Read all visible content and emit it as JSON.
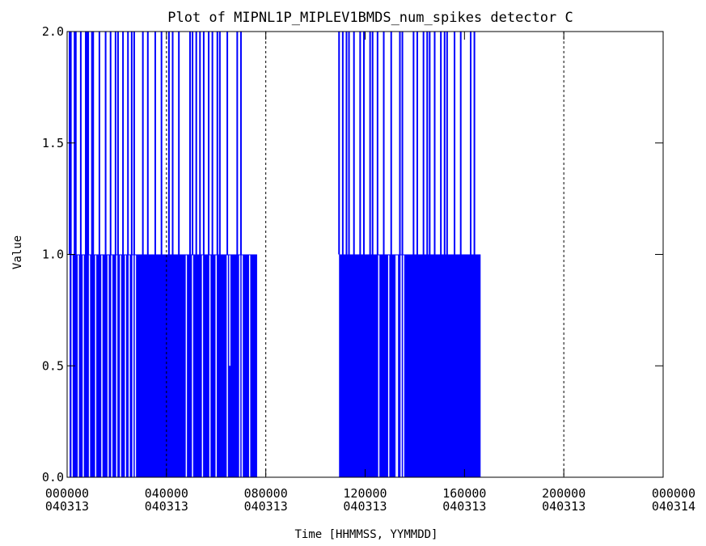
{
  "chart_data": {
    "type": "line",
    "title": "Plot of MIPNL1P_MIPLEV1BMDS_num_spikes detector C",
    "xlabel": "Time [HHMMSS, YYMMDD]",
    "ylabel": "Value",
    "ylim": [
      0.0,
      2.0
    ],
    "xlim_hours": [
      0,
      24
    ],
    "y_ticks": [
      "0.0",
      "0.5",
      "1.0",
      "1.5",
      "2.0"
    ],
    "x_ticks": [
      {
        "time": "000000",
        "date": "040313"
      },
      {
        "time": "040000",
        "date": "040313"
      },
      {
        "time": "080000",
        "date": "040313"
      },
      {
        "time": "120000",
        "date": "040313"
      },
      {
        "time": "160000",
        "date": "040313"
      },
      {
        "time": "200000",
        "date": "040313"
      },
      {
        "time": "000000",
        "date": "040314"
      }
    ],
    "dotted_gridlines_hours": [
      4,
      8,
      20
    ],
    "series_color": "#0000ff",
    "series": [
      {
        "segments": [
          {
            "start_h": 0.1,
            "end_h": 7.65,
            "value": 1
          },
          {
            "start_h": 10.95,
            "end_h": 16.65,
            "value": 1
          }
        ],
        "spikes_value_2_h": [
          0.1,
          0.15,
          0.3,
          0.35,
          0.55,
          0.75,
          0.8,
          0.85,
          1.0,
          1.05,
          1.3,
          1.55,
          1.75,
          1.95,
          2.05,
          2.25,
          2.45,
          2.6,
          2.7,
          3.05,
          3.25,
          3.55,
          3.8,
          4.1,
          4.25,
          4.5,
          4.95,
          5.05,
          5.2,
          5.35,
          5.5,
          5.7,
          5.85,
          6.05,
          6.15,
          6.45,
          6.85,
          7.0,
          10.95,
          11.1,
          11.25,
          11.35,
          11.55,
          11.8,
          11.95,
          12.2,
          12.3,
          12.5,
          12.75,
          13.05,
          13.4,
          13.5,
          13.95,
          14.1,
          14.35,
          14.5,
          14.6,
          14.8,
          15.05,
          15.2,
          15.3,
          15.6,
          15.85,
          16.25,
          16.4
        ],
        "dips_value_0_h": [
          0.2,
          0.45,
          0.65,
          0.9,
          1.15,
          1.4,
          1.65,
          1.8,
          2.0,
          2.15,
          2.35,
          2.5,
          2.65,
          2.75,
          4.8,
          5.05,
          5.45,
          5.75,
          6.0,
          6.45,
          6.95,
          7.05,
          7.35,
          12.55,
          12.95,
          13.25,
          13.3,
          13.45,
          13.55
        ],
        "dips_value_0_5_h": [
          6.55
        ]
      }
    ]
  }
}
